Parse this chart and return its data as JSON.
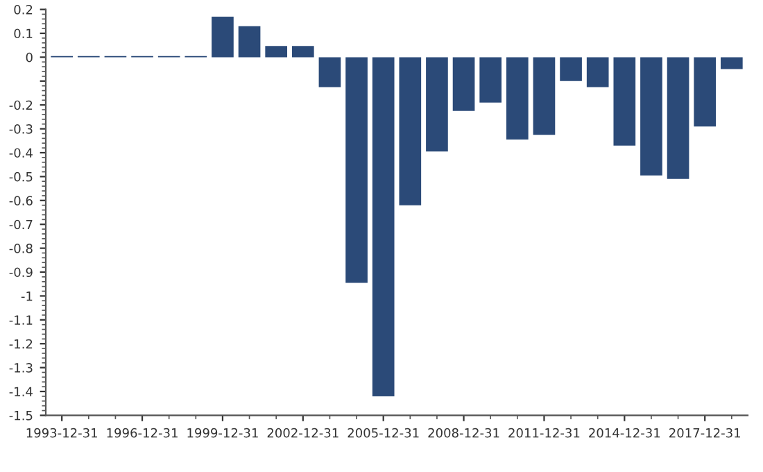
{
  "chart_data": {
    "type": "bar",
    "categories": [
      "1993-12-31",
      null,
      null,
      "1996-12-31",
      null,
      null,
      "1999-12-31",
      null,
      null,
      "2002-12-31",
      null,
      null,
      "2005-12-31",
      null,
      null,
      "2008-12-31",
      null,
      null,
      "2011-12-31",
      null,
      null,
      "2014-12-31",
      null,
      null,
      "2017-12-31",
      null
    ],
    "values": [
      0.005,
      0.005,
      0.005,
      0.005,
      0.005,
      0.005,
      0.17,
      0.13,
      0.047,
      0.047,
      -0.125,
      -0.945,
      -1.42,
      -0.62,
      -0.395,
      -0.225,
      -0.19,
      -0.345,
      -0.325,
      -0.1,
      -0.125,
      -0.37,
      -0.495,
      -0.51,
      -0.29,
      -0.05
    ],
    "color": "#2b4a78",
    "ylim": [
      -1.5,
      0.2
    ],
    "yticks": [
      -1.5,
      -1.4,
      -1.3,
      -1.2,
      -1.1,
      -1,
      -0.9,
      -0.8,
      -0.7,
      -0.6,
      -0.5,
      -0.4,
      -0.3,
      -0.2,
      {
        "value": -0.1,
        "label": null
      },
      0,
      0.1,
      0.2
    ]
  }
}
